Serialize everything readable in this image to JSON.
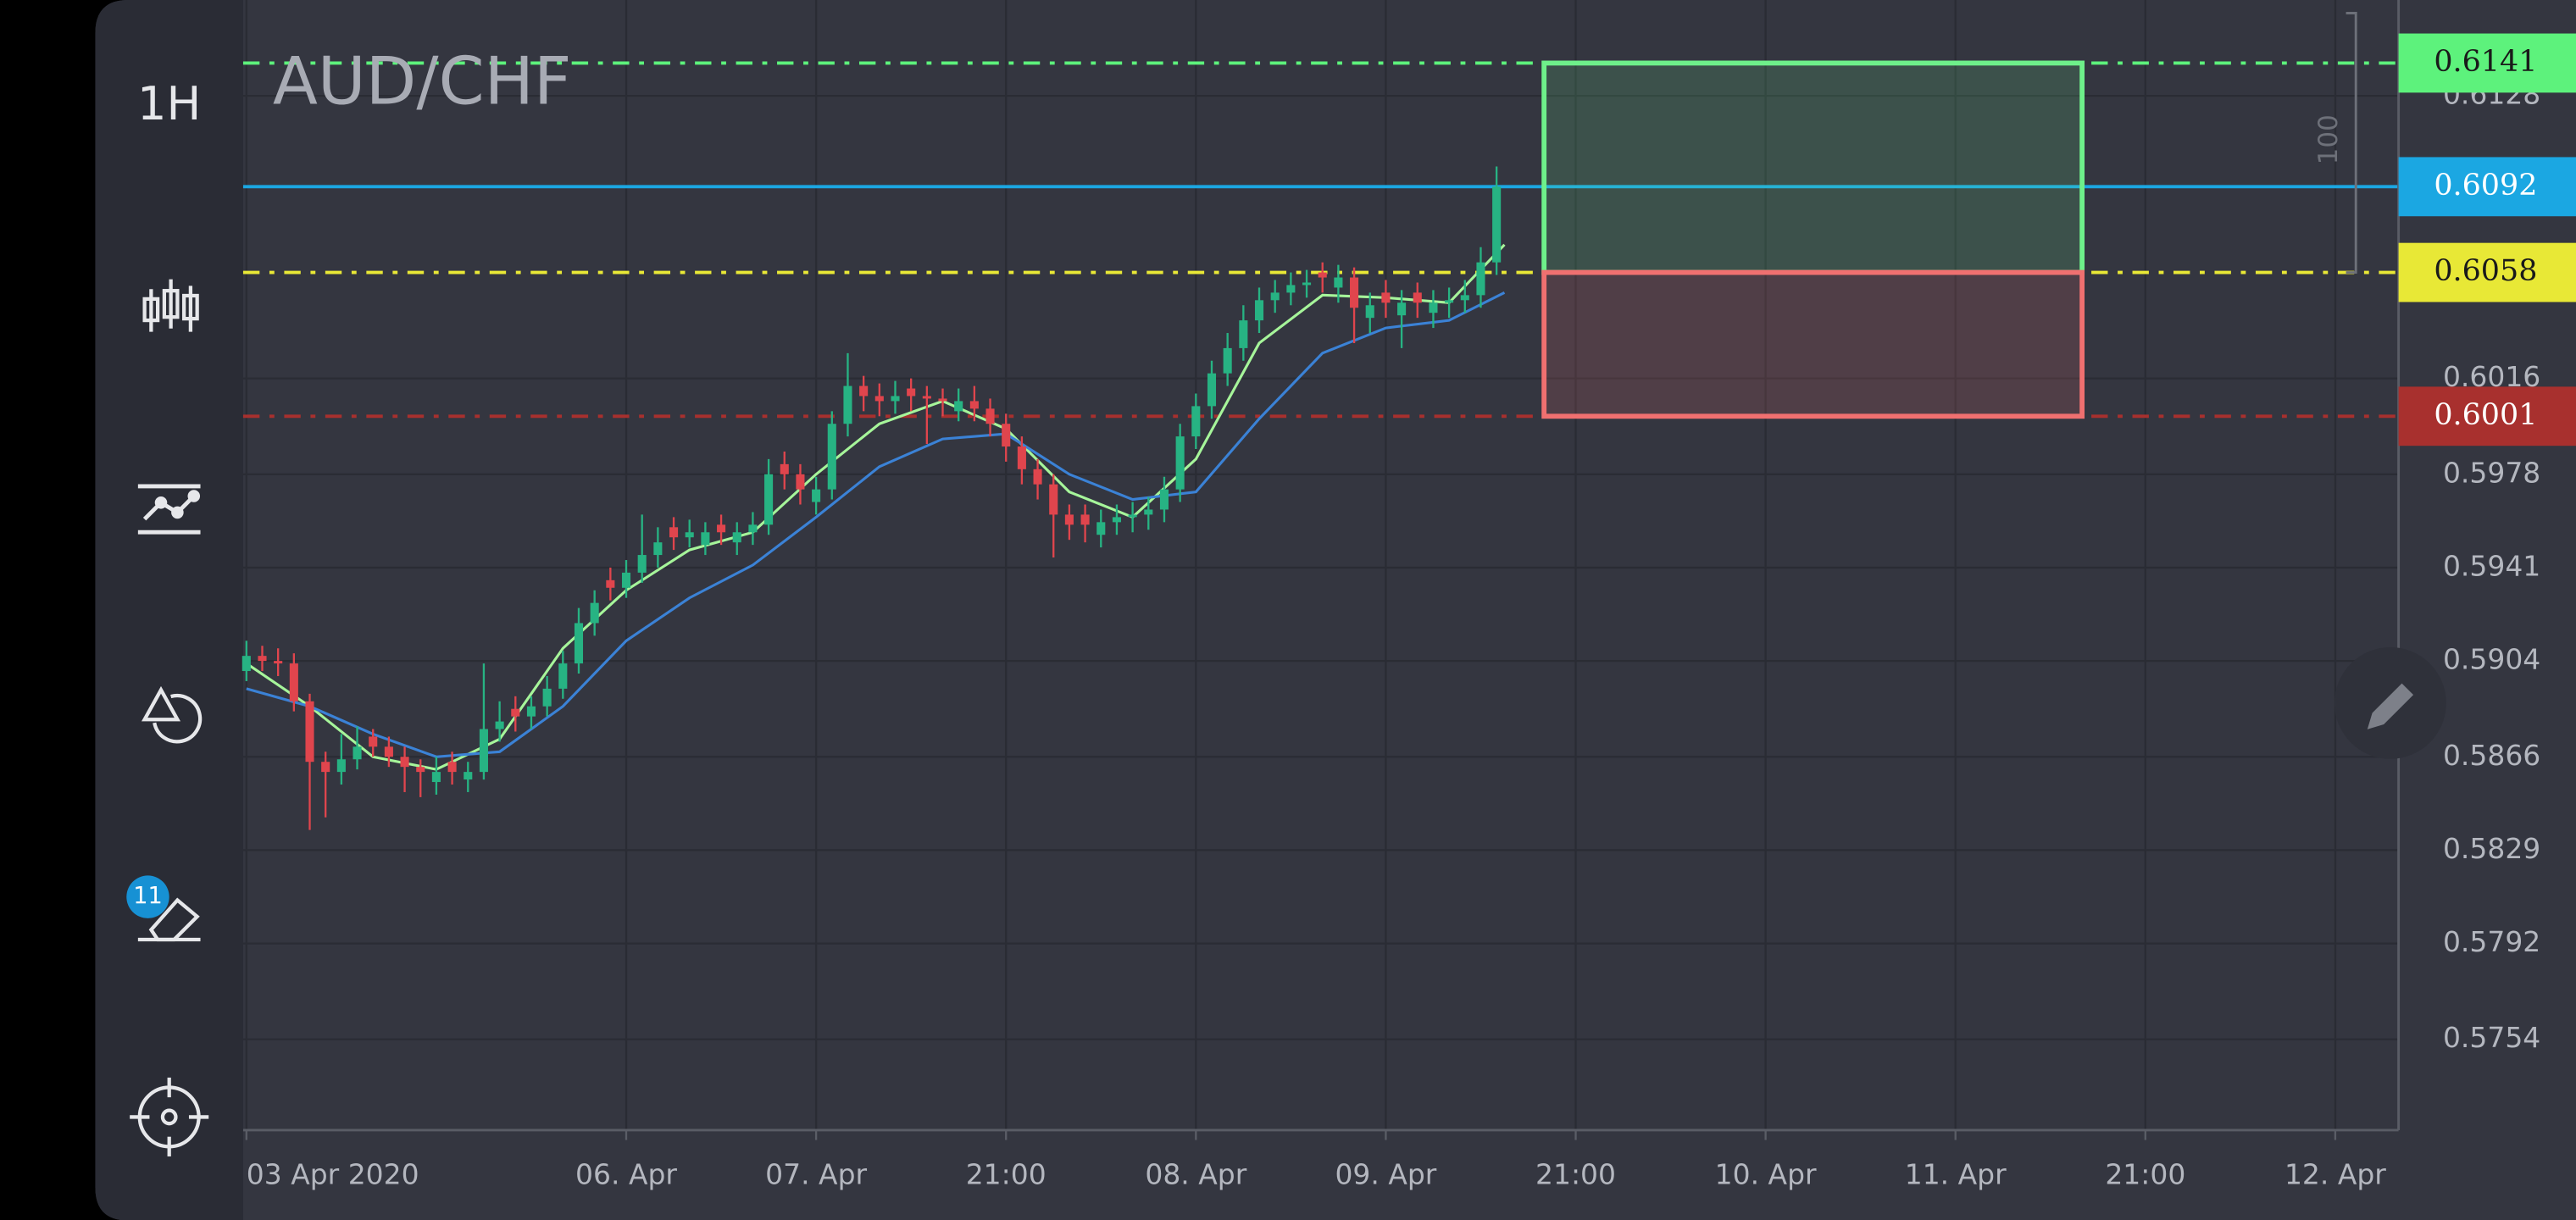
{
  "app": {
    "timeframe": "1H",
    "drawings_badge": "11"
  },
  "chart_data": {
    "type": "candlestick",
    "title": "AUD/CHF",
    "x": [
      0,
      2,
      4,
      6,
      8,
      10,
      12,
      14,
      16,
      18,
      20,
      22,
      24,
      26,
      28,
      30,
      32,
      34,
      36,
      38,
      40,
      42,
      44,
      46,
      48,
      50,
      52,
      54,
      56,
      58,
      60,
      62,
      64,
      66,
      68,
      70,
      72,
      74,
      76,
      78,
      80,
      82,
      84,
      86,
      88,
      90,
      92,
      94,
      96,
      98,
      100,
      102,
      104,
      106,
      108,
      110,
      112,
      114,
      116,
      118,
      120,
      122,
      124,
      126,
      128,
      130,
      132,
      134,
      136,
      138,
      140,
      142,
      144,
      146,
      148,
      150,
      152,
      154,
      156,
      158
    ],
    "open": [
      0.59,
      0.5906,
      0.5904,
      0.5903,
      0.5888,
      0.5864,
      0.586,
      0.5865,
      0.5874,
      0.587,
      0.5866,
      0.5862,
      0.5856,
      0.5864,
      0.5857,
      0.586,
      0.5877,
      0.5885,
      0.5882,
      0.5886,
      0.5893,
      0.5903,
      0.5919,
      0.5936,
      0.5933,
      0.5939,
      0.5946,
      0.5957,
      0.5953,
      0.595,
      0.5958,
      0.5951,
      0.5955,
      0.5958,
      0.5982,
      0.5978,
      0.5967,
      0.5972,
      0.5998,
      0.6013,
      0.6009,
      0.6007,
      0.6012,
      0.6009,
      0.6008,
      0.6003,
      0.6007,
      0.6004,
      0.5998,
      0.5989,
      0.598,
      0.5974,
      0.5962,
      0.5962,
      0.5954,
      0.5959,
      0.5961,
      0.5962,
      0.5964,
      0.5972,
      0.5993,
      0.6005,
      0.6018,
      0.6028,
      0.6039,
      0.6047,
      0.605,
      0.6053,
      0.6058,
      0.6052,
      0.6056,
      0.604,
      0.605,
      0.6041,
      0.605,
      0.6042,
      0.6046,
      0.6047,
      0.6049,
      0.6062
    ],
    "high": [
      0.5912,
      0.591,
      0.5909,
      0.5907,
      0.5891,
      0.5868,
      0.5875,
      0.5878,
      0.5877,
      0.5874,
      0.587,
      0.5865,
      0.5866,
      0.5868,
      0.5864,
      0.5903,
      0.5888,
      0.589,
      0.589,
      0.5898,
      0.5908,
      0.5925,
      0.5932,
      0.5941,
      0.5944,
      0.5962,
      0.5957,
      0.5961,
      0.596,
      0.5959,
      0.5962,
      0.5959,
      0.5963,
      0.5984,
      0.5987,
      0.5982,
      0.5977,
      0.6003,
      0.6026,
      0.6017,
      0.6014,
      0.6015,
      0.6016,
      0.6013,
      0.6012,
      0.6012,
      0.6013,
      0.6008,
      0.6002,
      0.5993,
      0.5984,
      0.5978,
      0.5966,
      0.5966,
      0.5964,
      0.5966,
      0.5967,
      0.5969,
      0.5977,
      0.5998,
      0.601,
      0.6023,
      0.6034,
      0.6045,
      0.6052,
      0.6055,
      0.6058,
      0.6059,
      0.6062,
      0.6061,
      0.606,
      0.605,
      0.6055,
      0.6051,
      0.6054,
      0.6051,
      0.6052,
      0.6055,
      0.6068,
      0.61
    ],
    "low": [
      0.5896,
      0.59,
      0.5898,
      0.5884,
      0.5837,
      0.5842,
      0.5855,
      0.5861,
      0.5866,
      0.5862,
      0.5852,
      0.585,
      0.5851,
      0.5855,
      0.5852,
      0.5857,
      0.5872,
      0.5876,
      0.5877,
      0.5882,
      0.5889,
      0.5899,
      0.5914,
      0.5928,
      0.5929,
      0.5935,
      0.5941,
      0.5948,
      0.5949,
      0.5946,
      0.595,
      0.5946,
      0.595,
      0.5954,
      0.5972,
      0.5966,
      0.5962,
      0.5968,
      0.5993,
      0.6003,
      0.6001,
      0.6002,
      0.6003,
      0.599,
      0.6001,
      0.5999,
      0.5999,
      0.5993,
      0.5983,
      0.5974,
      0.5968,
      0.5945,
      0.5952,
      0.5951,
      0.5949,
      0.5954,
      0.5955,
      0.5956,
      0.5959,
      0.5967,
      0.5988,
      0.6,
      0.6013,
      0.6023,
      0.6034,
      0.6042,
      0.6045,
      0.6048,
      0.605,
      0.6046,
      0.603,
      0.6034,
      0.604,
      0.6028,
      0.604,
      0.6036,
      0.604,
      0.6042,
      0.6044,
      0.6057
    ],
    "close": [
      0.5906,
      0.5904,
      0.5903,
      0.5888,
      0.5864,
      0.586,
      0.5865,
      0.587,
      0.587,
      0.5866,
      0.5862,
      0.586,
      0.586,
      0.586,
      0.586,
      0.5877,
      0.588,
      0.5882,
      0.5886,
      0.5893,
      0.5903,
      0.5919,
      0.5927,
      0.5933,
      0.5939,
      0.5946,
      0.5951,
      0.5953,
      0.5955,
      0.5955,
      0.5955,
      0.5955,
      0.5958,
      0.5978,
      0.5978,
      0.5972,
      0.5972,
      0.5998,
      0.6013,
      0.6009,
      0.6007,
      0.6009,
      0.6009,
      0.6008,
      0.6007,
      0.6007,
      0.6004,
      0.5998,
      0.5989,
      0.598,
      0.5974,
      0.5962,
      0.5958,
      0.5958,
      0.5959,
      0.5961,
      0.5962,
      0.5964,
      0.5972,
      0.5993,
      0.6005,
      0.6018,
      0.6028,
      0.6039,
      0.6047,
      0.605,
      0.6053,
      0.6054,
      0.6056,
      0.6056,
      0.6044,
      0.6045,
      0.6046,
      0.6046,
      0.6046,
      0.6046,
      0.6047,
      0.6049,
      0.6062,
      0.6092
    ],
    "up_color": "#27b383",
    "down_color": "#e0454d",
    "series": [
      {
        "color": "#a6f59a",
        "x": [
          0,
          8,
          16,
          24,
          32,
          40,
          48,
          56,
          64,
          72,
          80,
          88,
          96,
          104,
          112,
          120,
          128,
          136,
          144,
          152,
          159
        ],
        "values": [
          0.5903,
          0.5886,
          0.5866,
          0.5861,
          0.5873,
          0.5909,
          0.5932,
          0.5948,
          0.5955,
          0.5978,
          0.5998,
          0.6007,
          0.5996,
          0.5971,
          0.5961,
          0.5984,
          0.603,
          0.6049,
          0.6048,
          0.6046,
          0.6069
        ]
      },
      {
        "color": "#3b82d6",
        "x": [
          0,
          8,
          16,
          24,
          32,
          40,
          48,
          56,
          64,
          72,
          80,
          88,
          96,
          104,
          112,
          120,
          128,
          136,
          144,
          152,
          159
        ],
        "values": [
          0.5893,
          0.5886,
          0.5875,
          0.5866,
          0.5868,
          0.5886,
          0.5912,
          0.5929,
          0.5942,
          0.5961,
          0.5981,
          0.5992,
          0.5994,
          0.5978,
          0.5968,
          0.5971,
          0.6,
          0.6026,
          0.6036,
          0.6039,
          0.605
        ]
      }
    ],
    "levels": [
      {
        "value": 0.6141,
        "color": "#5df27c",
        "text_color": "#1a1a1a",
        "style": "dashdot"
      },
      {
        "value": 0.6092,
        "color": "#1ba7e2",
        "text_color": "#ffffff",
        "style": "solid"
      },
      {
        "value": 0.6058,
        "color": "#e8e836",
        "text_color": "#1a1a1a",
        "style": "dashdot"
      },
      {
        "value": 0.6001,
        "color": "#a8302e",
        "text_color": "#ffffff",
        "style": "dashdot"
      }
    ],
    "position": {
      "x": [
        164,
        232
      ],
      "profit_color": "#6ef08a",
      "loss_color": "#f07070"
    },
    "range_label": "100",
    "xlim": [
      0,
      272
    ],
    "ylim": [
      0.5718,
      0.6166
    ],
    "xticks": [
      {
        "value": 0,
        "label": "03 Apr 2020"
      },
      {
        "value": 48,
        "label": "06. Apr"
      },
      {
        "value": 72,
        "label": "07. Apr"
      },
      {
        "value": 96,
        "label": "21:00"
      },
      {
        "value": 120,
        "label": "08. Apr"
      },
      {
        "value": 144,
        "label": "09. Apr"
      },
      {
        "value": 168,
        "label": "21:00"
      },
      {
        "value": 192,
        "label": "10. Apr"
      },
      {
        "value": 216,
        "label": "11. Apr"
      },
      {
        "value": 240,
        "label": "21:00"
      },
      {
        "value": 264,
        "label": "12. Apr"
      }
    ],
    "yticks": [
      0.6128,
      0.6016,
      0.5978,
      0.5941,
      0.5904,
      0.5866,
      0.5829,
      0.5792,
      0.5754
    ],
    "grid": true
  }
}
